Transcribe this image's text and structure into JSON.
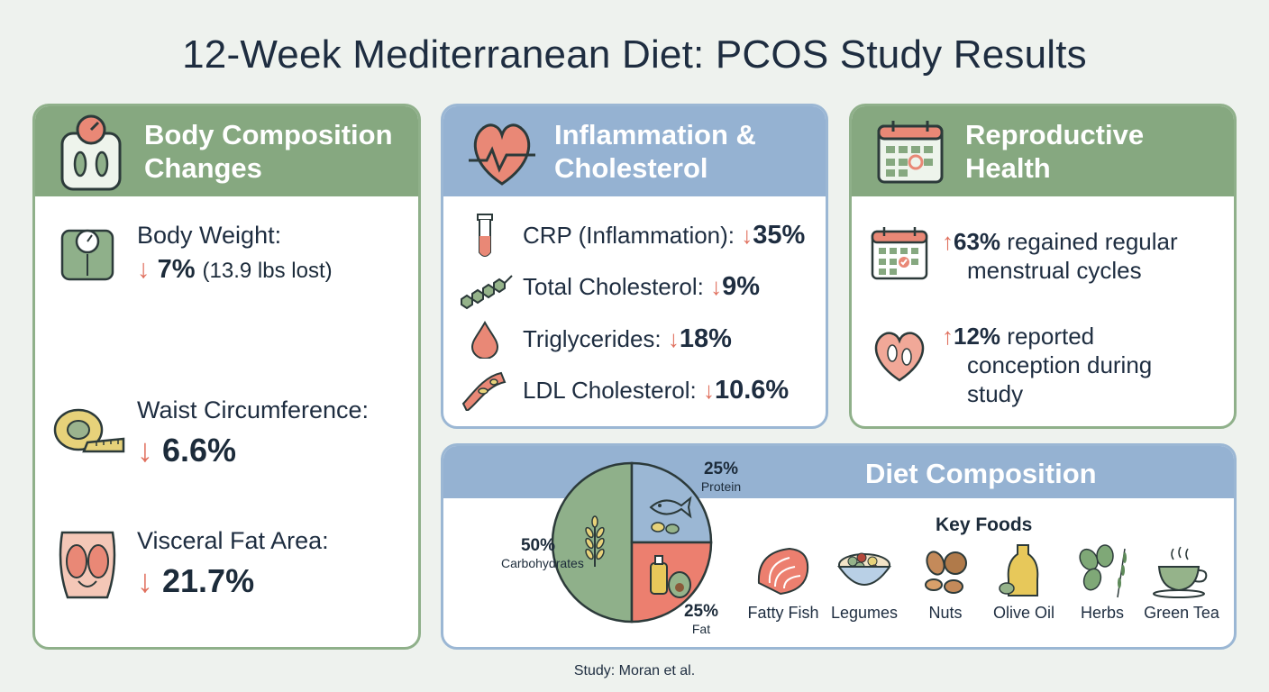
{
  "title": "12-Week Mediterranean Diet: PCOS Study Results",
  "body_comp": {
    "title_line1": "Body Composition",
    "title_line2": "Changes",
    "weight_label": "Body Weight:",
    "weight_arrow": "↓",
    "weight_value": "7%",
    "weight_note": "(13.9 lbs lost)",
    "waist_label": "Waist Circumference:",
    "waist_arrow": "↓",
    "waist_value": "6.6%",
    "visceral_label": "Visceral Fat Area:",
    "visceral_arrow": "↓",
    "visceral_value": "21.7%"
  },
  "inflammation": {
    "title_line1": "Inflammation &",
    "title_line2": "Cholesterol",
    "rows": [
      {
        "label": "CRP (Inflammation):",
        "arrow": "↓",
        "value": "35%"
      },
      {
        "label": "Total Cholesterol:",
        "arrow": "↓",
        "value": "9%"
      },
      {
        "label": "Triglycerides:",
        "arrow": "↓",
        "value": "18%"
      },
      {
        "label": "LDL Cholesterol:",
        "arrow": "↓",
        "value": "10.6%"
      }
    ]
  },
  "reproductive": {
    "title_line1": "Reproductive",
    "title_line2": "Health",
    "item1_arrow": "↑",
    "item1_value": "63%",
    "item1_text_a": "regained regular",
    "item1_text_b": "menstrual cycles",
    "item2_arrow": "↑",
    "item2_value": "12%",
    "item2_text_a": "reported",
    "item2_text_b": "conception during",
    "item2_text_c": "study"
  },
  "diet": {
    "title": "Diet Composition",
    "key_foods_label": "Key Foods",
    "foods": [
      "Fatty Fish",
      "Legumes",
      "Nuts",
      "Olive Oil",
      "Herbs",
      "Green Tea"
    ]
  },
  "chart_data": {
    "type": "pie",
    "categories": [
      "Carbohydrates",
      "Protein",
      "Fat"
    ],
    "values": [
      50,
      25,
      25
    ],
    "value_labels": [
      "50%",
      "25%",
      "25%"
    ],
    "colors": [
      "#8fb08a",
      "#9bb7d4",
      "#ec7f6f"
    ]
  },
  "footer": "Study: Moran et al."
}
